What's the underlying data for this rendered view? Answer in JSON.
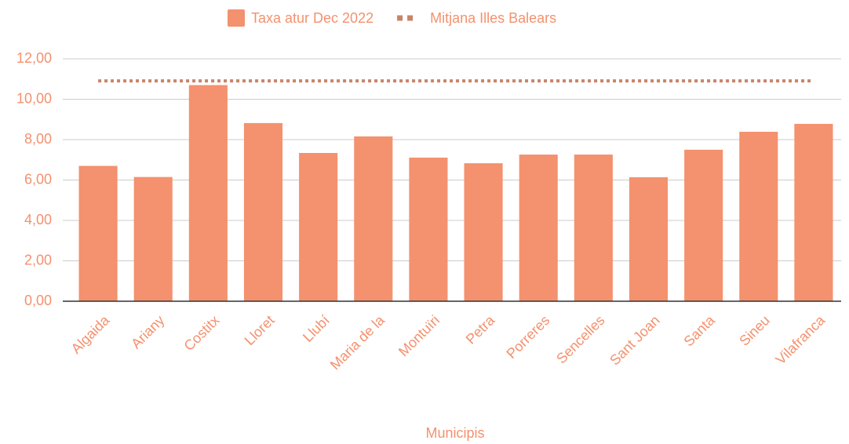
{
  "chart_data": {
    "type": "bar",
    "xlabel": "Municipis",
    "categories": [
      "Algaida",
      "Ariany",
      "Costitx",
      "Lloret",
      "Llubí",
      "Maria de la",
      "Montuïri",
      "Petra",
      "Porreres",
      "Sencelles",
      "Sant Joan",
      "Santa",
      "Sineu",
      "Vilafranca"
    ],
    "series": [
      {
        "name": "Taxa atur Dec 2022",
        "type": "bar",
        "color": "#f4916e",
        "values": [
          6.7,
          6.15,
          10.7,
          8.82,
          7.34,
          8.16,
          7.11,
          6.83,
          7.26,
          7.26,
          6.14,
          7.5,
          8.39,
          8.78
        ]
      },
      {
        "name": "Mitjana Illes Balears",
        "type": "line",
        "dashed": true,
        "color": "#c98467",
        "values": [
          10.91,
          10.91,
          10.91,
          10.91,
          10.91,
          10.91,
          10.91,
          10.91,
          10.91,
          10.91,
          10.91,
          10.91,
          10.91,
          10.91
        ]
      }
    ],
    "ylim": [
      0,
      12
    ],
    "yticks": [
      {
        "value": 0,
        "label": "0,00"
      },
      {
        "value": 2,
        "label": "2,00"
      },
      {
        "value": 4,
        "label": "4,00"
      },
      {
        "value": 6,
        "label": "6,00"
      },
      {
        "value": 8,
        "label": "8,00"
      },
      {
        "value": 10,
        "label": "10,00"
      },
      {
        "value": 12,
        "label": "12,00"
      }
    ],
    "grid": true,
    "legend": "top"
  }
}
